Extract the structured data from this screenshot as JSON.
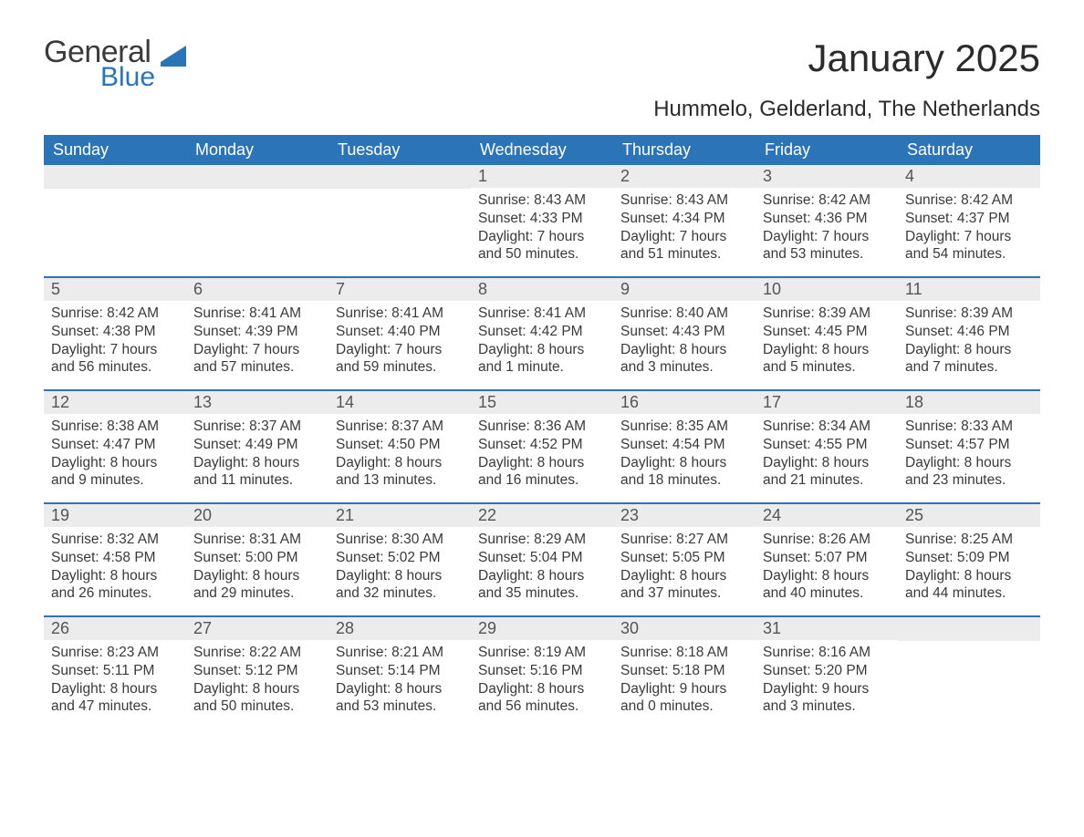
{
  "logo": {
    "general": "General",
    "blue": "Blue"
  },
  "title": "January 2025",
  "subtitle": "Hummelo, Gelderland, The Netherlands",
  "colors": {
    "header_bg": "#2b74b8",
    "header_text": "#ffffff",
    "daynum_bg": "#ececec",
    "daynum_text": "#555555",
    "row_divider": "#2b74b8",
    "body_text": "#3a3a3a",
    "page_bg": "#ffffff"
  },
  "typography": {
    "title_fontsize": 42,
    "subtitle_fontsize": 24,
    "weekday_fontsize": 18,
    "daynum_fontsize": 18,
    "body_fontsize": 15.5,
    "font_family": "Arial"
  },
  "calendar": {
    "weekdays": [
      "Sunday",
      "Monday",
      "Tuesday",
      "Wednesday",
      "Thursday",
      "Friday",
      "Saturday"
    ],
    "weeks": [
      [
        {
          "num": "",
          "sunrise": "",
          "sunset": "",
          "daylight": ""
        },
        {
          "num": "",
          "sunrise": "",
          "sunset": "",
          "daylight": ""
        },
        {
          "num": "",
          "sunrise": "",
          "sunset": "",
          "daylight": ""
        },
        {
          "num": "1",
          "sunrise": "Sunrise: 8:43 AM",
          "sunset": "Sunset: 4:33 PM",
          "daylight": "Daylight: 7 hours and 50 minutes."
        },
        {
          "num": "2",
          "sunrise": "Sunrise: 8:43 AM",
          "sunset": "Sunset: 4:34 PM",
          "daylight": "Daylight: 7 hours and 51 minutes."
        },
        {
          "num": "3",
          "sunrise": "Sunrise: 8:42 AM",
          "sunset": "Sunset: 4:36 PM",
          "daylight": "Daylight: 7 hours and 53 minutes."
        },
        {
          "num": "4",
          "sunrise": "Sunrise: 8:42 AM",
          "sunset": "Sunset: 4:37 PM",
          "daylight": "Daylight: 7 hours and 54 minutes."
        }
      ],
      [
        {
          "num": "5",
          "sunrise": "Sunrise: 8:42 AM",
          "sunset": "Sunset: 4:38 PM",
          "daylight": "Daylight: 7 hours and 56 minutes."
        },
        {
          "num": "6",
          "sunrise": "Sunrise: 8:41 AM",
          "sunset": "Sunset: 4:39 PM",
          "daylight": "Daylight: 7 hours and 57 minutes."
        },
        {
          "num": "7",
          "sunrise": "Sunrise: 8:41 AM",
          "sunset": "Sunset: 4:40 PM",
          "daylight": "Daylight: 7 hours and 59 minutes."
        },
        {
          "num": "8",
          "sunrise": "Sunrise: 8:41 AM",
          "sunset": "Sunset: 4:42 PM",
          "daylight": "Daylight: 8 hours and 1 minute."
        },
        {
          "num": "9",
          "sunrise": "Sunrise: 8:40 AM",
          "sunset": "Sunset: 4:43 PM",
          "daylight": "Daylight: 8 hours and 3 minutes."
        },
        {
          "num": "10",
          "sunrise": "Sunrise: 8:39 AM",
          "sunset": "Sunset: 4:45 PM",
          "daylight": "Daylight: 8 hours and 5 minutes."
        },
        {
          "num": "11",
          "sunrise": "Sunrise: 8:39 AM",
          "sunset": "Sunset: 4:46 PM",
          "daylight": "Daylight: 8 hours and 7 minutes."
        }
      ],
      [
        {
          "num": "12",
          "sunrise": "Sunrise: 8:38 AM",
          "sunset": "Sunset: 4:47 PM",
          "daylight": "Daylight: 8 hours and 9 minutes."
        },
        {
          "num": "13",
          "sunrise": "Sunrise: 8:37 AM",
          "sunset": "Sunset: 4:49 PM",
          "daylight": "Daylight: 8 hours and 11 minutes."
        },
        {
          "num": "14",
          "sunrise": "Sunrise: 8:37 AM",
          "sunset": "Sunset: 4:50 PM",
          "daylight": "Daylight: 8 hours and 13 minutes."
        },
        {
          "num": "15",
          "sunrise": "Sunrise: 8:36 AM",
          "sunset": "Sunset: 4:52 PM",
          "daylight": "Daylight: 8 hours and 16 minutes."
        },
        {
          "num": "16",
          "sunrise": "Sunrise: 8:35 AM",
          "sunset": "Sunset: 4:54 PM",
          "daylight": "Daylight: 8 hours and 18 minutes."
        },
        {
          "num": "17",
          "sunrise": "Sunrise: 8:34 AM",
          "sunset": "Sunset: 4:55 PM",
          "daylight": "Daylight: 8 hours and 21 minutes."
        },
        {
          "num": "18",
          "sunrise": "Sunrise: 8:33 AM",
          "sunset": "Sunset: 4:57 PM",
          "daylight": "Daylight: 8 hours and 23 minutes."
        }
      ],
      [
        {
          "num": "19",
          "sunrise": "Sunrise: 8:32 AM",
          "sunset": "Sunset: 4:58 PM",
          "daylight": "Daylight: 8 hours and 26 minutes."
        },
        {
          "num": "20",
          "sunrise": "Sunrise: 8:31 AM",
          "sunset": "Sunset: 5:00 PM",
          "daylight": "Daylight: 8 hours and 29 minutes."
        },
        {
          "num": "21",
          "sunrise": "Sunrise: 8:30 AM",
          "sunset": "Sunset: 5:02 PM",
          "daylight": "Daylight: 8 hours and 32 minutes."
        },
        {
          "num": "22",
          "sunrise": "Sunrise: 8:29 AM",
          "sunset": "Sunset: 5:04 PM",
          "daylight": "Daylight: 8 hours and 35 minutes."
        },
        {
          "num": "23",
          "sunrise": "Sunrise: 8:27 AM",
          "sunset": "Sunset: 5:05 PM",
          "daylight": "Daylight: 8 hours and 37 minutes."
        },
        {
          "num": "24",
          "sunrise": "Sunrise: 8:26 AM",
          "sunset": "Sunset: 5:07 PM",
          "daylight": "Daylight: 8 hours and 40 minutes."
        },
        {
          "num": "25",
          "sunrise": "Sunrise: 8:25 AM",
          "sunset": "Sunset: 5:09 PM",
          "daylight": "Daylight: 8 hours and 44 minutes."
        }
      ],
      [
        {
          "num": "26",
          "sunrise": "Sunrise: 8:23 AM",
          "sunset": "Sunset: 5:11 PM",
          "daylight": "Daylight: 8 hours and 47 minutes."
        },
        {
          "num": "27",
          "sunrise": "Sunrise: 8:22 AM",
          "sunset": "Sunset: 5:12 PM",
          "daylight": "Daylight: 8 hours and 50 minutes."
        },
        {
          "num": "28",
          "sunrise": "Sunrise: 8:21 AM",
          "sunset": "Sunset: 5:14 PM",
          "daylight": "Daylight: 8 hours and 53 minutes."
        },
        {
          "num": "29",
          "sunrise": "Sunrise: 8:19 AM",
          "sunset": "Sunset: 5:16 PM",
          "daylight": "Daylight: 8 hours and 56 minutes."
        },
        {
          "num": "30",
          "sunrise": "Sunrise: 8:18 AM",
          "sunset": "Sunset: 5:18 PM",
          "daylight": "Daylight: 9 hours and 0 minutes."
        },
        {
          "num": "31",
          "sunrise": "Sunrise: 8:16 AM",
          "sunset": "Sunset: 5:20 PM",
          "daylight": "Daylight: 9 hours and 3 minutes."
        },
        {
          "num": "",
          "sunrise": "",
          "sunset": "",
          "daylight": ""
        }
      ]
    ]
  }
}
